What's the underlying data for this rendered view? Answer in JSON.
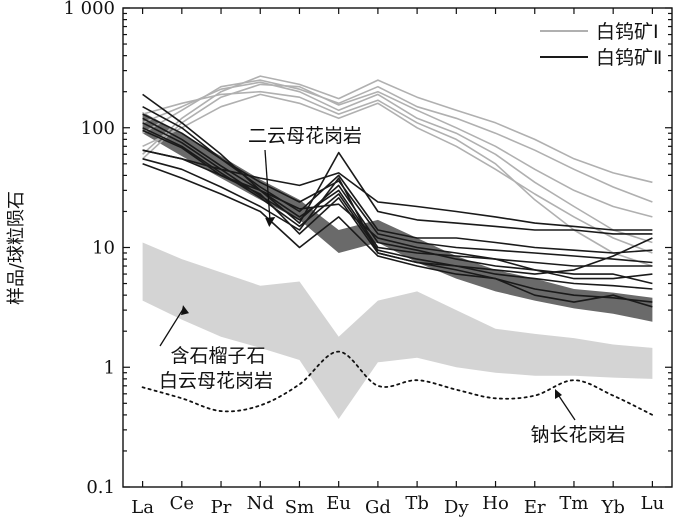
{
  "chart_data": {
    "type": "line",
    "title": "",
    "xlabel": "",
    "ylabel": "样品/球粒陨石",
    "yscale": "log",
    "ylim": [
      0.1,
      1000
    ],
    "yticks": [
      {
        "value": 0.1,
        "label": "0.1"
      },
      {
        "value": 1,
        "label": "1"
      },
      {
        "value": 10,
        "label": "10"
      },
      {
        "value": 100,
        "label": "100"
      },
      {
        "value": 1000,
        "label": "1 000"
      }
    ],
    "categories": [
      "La",
      "Ce",
      "Pr",
      "Nd",
      "Sm",
      "Eu",
      "Gd",
      "Tb",
      "Dy",
      "Ho",
      "Er",
      "Tm",
      "Yb",
      "Lu"
    ],
    "legend": {
      "position": "top-right",
      "entries": [
        {
          "label": "白钨矿Ⅰ",
          "color": "#b0b0b0"
        },
        {
          "label": "白钨矿Ⅱ",
          "color": "#1a1a1a"
        }
      ]
    },
    "groups": [
      {
        "name": "白钨矿Ⅰ",
        "color": "#b0b0b0",
        "series": [
          [
            60,
            120,
            200,
            270,
            230,
            175,
            250,
            180,
            140,
            110,
            80,
            55,
            42,
            35
          ],
          [
            90,
            140,
            220,
            250,
            210,
            160,
            220,
            150,
            120,
            90,
            65,
            45,
            32,
            24
          ],
          [
            55,
            110,
            180,
            230,
            220,
            155,
            200,
            140,
            100,
            70,
            45,
            30,
            22,
            18
          ],
          [
            110,
            150,
            210,
            240,
            200,
            140,
            190,
            120,
            90,
            60,
            35,
            22,
            14,
            11
          ],
          [
            70,
            100,
            150,
            190,
            160,
            120,
            160,
            100,
            70,
            45,
            28,
            18,
            12,
            9
          ],
          [
            130,
            160,
            190,
            200,
            180,
            130,
            170,
            110,
            80,
            50,
            25,
            14,
            9,
            7
          ]
        ]
      },
      {
        "name": "白钨矿Ⅱ",
        "color": "#1a1a1a",
        "series": [
          [
            190,
            110,
            60,
            30,
            16,
            62,
            20,
            17,
            16,
            15,
            14,
            14,
            13,
            13
          ],
          [
            150,
            100,
            55,
            32,
            20,
            40,
            14,
            12,
            12,
            11,
            10,
            9.5,
            9,
            9.5
          ],
          [
            130,
            90,
            55,
            35,
            24,
            36,
            13,
            11,
            10,
            9.5,
            9,
            8.5,
            8,
            7.5
          ],
          [
            120,
            80,
            48,
            30,
            18,
            30,
            10,
            9,
            8.5,
            8,
            7.5,
            7,
            7,
            7
          ],
          [
            110,
            75,
            45,
            27,
            17,
            33,
            11,
            9.5,
            8,
            7,
            6.5,
            6,
            6,
            5
          ],
          [
            100,
            70,
            42,
            26,
            15,
            28,
            9.5,
            8,
            7,
            6,
            5.5,
            5,
            4.8,
            4.5
          ],
          [
            95,
            68,
            40,
            28,
            13,
            26,
            9,
            7.5,
            6.5,
            5.5,
            4.5,
            4,
            3.8,
            3.5
          ],
          [
            65,
            55,
            40,
            30,
            21,
            23,
            12,
            10,
            9,
            8,
            6.5,
            5.5,
            5.5,
            6
          ],
          [
            55,
            45,
            32,
            22,
            14,
            38,
            9,
            7.5,
            7,
            6.5,
            6,
            6.5,
            8.5,
            12
          ],
          [
            50,
            38,
            28,
            20,
            10,
            18,
            8.5,
            7,
            6,
            5.5,
            4,
            3.5,
            4,
            3.2
          ],
          [
            65,
            55,
            45,
            38,
            33,
            42,
            24,
            22,
            20,
            18,
            16,
            15,
            14,
            14
          ]
        ]
      }
    ],
    "bands": [
      {
        "name": "二云母花岗岩",
        "color": "#6a6a6a",
        "upper": [
          135,
          90,
          58,
          37,
          25,
          14,
          17,
          12,
          8.5,
          6.5,
          5.5,
          4.5,
          4.2,
          3.8
        ],
        "lower": [
          90,
          58,
          38,
          25,
          17,
          9,
          11,
          7.5,
          5.5,
          4.3,
          3.6,
          3.1,
          2.8,
          2.4
        ]
      },
      {
        "name": "含石榴子石白云母花岗岩",
        "color": "#d4d4d4",
        "upper": [
          11,
          8,
          6.2,
          4.8,
          5.2,
          1.8,
          3.6,
          4.3,
          3.0,
          2.1,
          1.9,
          1.75,
          1.55,
          1.45
        ],
        "lower": [
          3.6,
          2.5,
          1.8,
          1.45,
          1.15,
          0.37,
          1.1,
          1.2,
          1.0,
          0.9,
          0.85,
          0.85,
          0.82,
          0.8
        ]
      }
    ],
    "reference_line": {
      "name": "钠长花岗岩",
      "style": "dotted",
      "values": [
        0.68,
        0.55,
        0.43,
        0.48,
        0.72,
        1.35,
        0.7,
        0.78,
        0.65,
        0.55,
        0.58,
        0.78,
        0.58,
        0.4
      ]
    },
    "annotations": [
      {
        "text": "二云母花岗岩",
        "lines": [
          "二云母花岗岩"
        ],
        "points_to": {
          "category": "Nd",
          "value": 14
        }
      },
      {
        "text": "含石榴子石白云母花岗岩",
        "lines": [
          "含石榴子石",
          "白云母花岗岩"
        ],
        "points_to": {
          "category": "Ce",
          "value": 3.3
        }
      },
      {
        "text": "钠长花岗岩",
        "lines": [
          "钠长花岗岩"
        ],
        "points_to": {
          "category": "Tm",
          "value": 0.76
        }
      }
    ]
  }
}
